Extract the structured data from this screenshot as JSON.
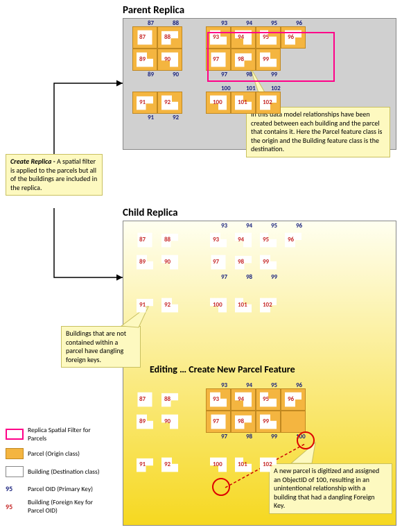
{
  "colors": {
    "parcel_fill": "#f4b540",
    "parcel_border": "#c08820",
    "building_fill": "#ffffff",
    "building_border": "#888888",
    "callout_fill": "#fdf9c0",
    "callout_border": "#c8c060",
    "parent_panel_bg": "#d0d0d0",
    "child_panel_bg_top": "#fffff0",
    "child_panel_bg_bottom": "#f6d820",
    "spatial_filter": "#ff0088",
    "parcel_oid_color": "#1a237e",
    "building_fk_color": "#c62828",
    "arrow_color": "#000000",
    "circle_marker": "#cc0000"
  },
  "titles": {
    "parent": "Parent Replica",
    "child": "Child Replica",
    "editing": "Editing … Create New Parcel Feature"
  },
  "callouts": {
    "create_replica": {
      "bold": "Create Replica - ",
      "text": "A spatial filter is applied to the parcels but all of the buildings are included in the replica."
    },
    "data_model": "In this data model relationships have been created between each building and the parcel that contains it. Here the Parcel feature class is the origin and the Building feature class is the destination.",
    "dangling": "Buildings that are not contained within a parcel have dangling foreign keys.",
    "new_parcel": "A new parcel is digitized and assigned an ObjectID of 100, resulting in an unintentional relationship with a building that had a dangling Foreign Key."
  },
  "legend": {
    "filter": "Replica Spatial Filter for Parcels",
    "parcel": "Parcel (Origin class)",
    "building": "Building (Destination class)",
    "parcel_oid": "Parcel OID (Primary Key)",
    "parcel_oid_num": "95",
    "building_fk": "Building (Foreign Key for Parcel OID)",
    "building_fk_num": "95"
  },
  "parcels": {
    "row1": [
      {
        "id": "87",
        "bldgs": [
          "87"
        ]
      },
      {
        "id": "88",
        "bldgs": [
          "88"
        ]
      },
      {
        "id": "93",
        "bldgs": [
          "93"
        ]
      },
      {
        "id": "94",
        "bldgs": [
          "94"
        ]
      },
      {
        "id": "95",
        "bldgs": [
          "95"
        ]
      },
      {
        "id": "96",
        "bldgs": [
          "96"
        ]
      }
    ],
    "row2": [
      {
        "id": "89",
        "bldgs": [
          "89"
        ]
      },
      {
        "id": "90",
        "bldgs": [
          "90"
        ]
      },
      {
        "id": "97",
        "bldgs": [
          "97"
        ]
      },
      {
        "id": "98",
        "bldgs": [
          "98"
        ]
      },
      {
        "id": "99",
        "bldgs": [
          "99"
        ]
      }
    ],
    "row3": [
      {
        "id": "91",
        "bldgs": [
          "91"
        ]
      },
      {
        "id": "92",
        "bldgs": [
          "92"
        ]
      },
      {
        "id": "100",
        "bldgs": [
          "100"
        ]
      },
      {
        "id": "101",
        "bldgs": [
          "101"
        ]
      },
      {
        "id": "102",
        "bldgs": [
          "102"
        ]
      }
    ],
    "new_parcel_id": "100"
  }
}
